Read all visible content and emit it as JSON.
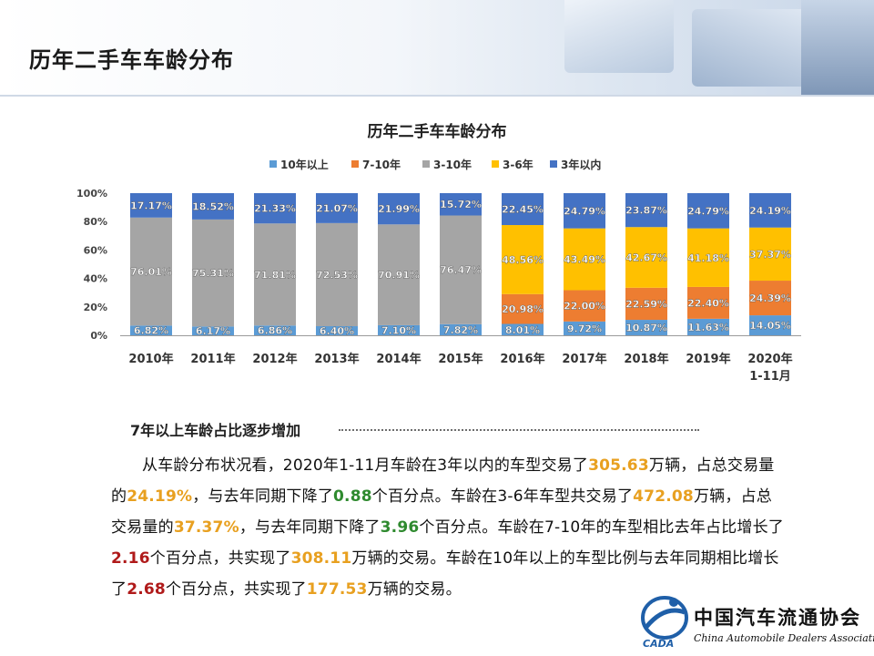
{
  "header": {
    "title": "历年二手车车龄分布"
  },
  "chart_data": {
    "type": "bar",
    "stacked": true,
    "percent": true,
    "title": "历年二手车车龄分布",
    "legend_position": "top",
    "ylim": [
      0,
      100
    ],
    "y_ticks": [
      "0%",
      "20%",
      "40%",
      "60%",
      "80%",
      "100%"
    ],
    "categories": [
      "2010年",
      "2011年",
      "2012年",
      "2013年",
      "2014年",
      "2015年",
      "2016年",
      "2017年",
      "2018年",
      "2019年",
      "2020年\n1-11月"
    ],
    "series": [
      {
        "name": "10年以上",
        "color": "#5b9bd5",
        "values": [
          6.82,
          6.17,
          6.86,
          6.4,
          7.1,
          7.82,
          8.01,
          9.72,
          10.87,
          11.63,
          14.05
        ],
        "labels": [
          "6.82%",
          "6.17%",
          "6.86%",
          "6.40%",
          "7.10%",
          "7.82%",
          "8.01%",
          "9.72%",
          "10.87%",
          "11.63%",
          "14.05%"
        ]
      },
      {
        "name": "7-10年",
        "color": "#ed7d31",
        "values": [
          null,
          null,
          null,
          null,
          null,
          null,
          20.98,
          22.0,
          22.59,
          22.4,
          24.39
        ],
        "labels": [
          "",
          "",
          "",
          "",
          "",
          "",
          "20.98%",
          "22.00%",
          "22.59%",
          "22.40%",
          "24.39%"
        ]
      },
      {
        "name": "3-10年",
        "color": "#a5a5a5",
        "values": [
          76.01,
          75.31,
          71.81,
          72.53,
          70.91,
          76.47,
          null,
          null,
          null,
          null,
          null
        ],
        "labels": [
          "76.01%",
          "75.31%",
          "71.81%",
          "72.53%",
          "70.91%",
          "76.47%",
          "",
          "",
          "",
          "",
          ""
        ]
      },
      {
        "name": "3-6年",
        "color": "#ffc000",
        "values": [
          null,
          null,
          null,
          null,
          null,
          null,
          48.56,
          43.49,
          42.67,
          41.18,
          37.37
        ],
        "labels": [
          "",
          "",
          "",
          "",
          "",
          "",
          "48.56%",
          "43.49%",
          "42.67%",
          "41.18%",
          "37.37%"
        ]
      },
      {
        "name": "3年以内",
        "color": "#4472c4",
        "values": [
          17.17,
          18.52,
          21.33,
          21.07,
          21.99,
          15.72,
          22.45,
          24.79,
          23.87,
          24.79,
          24.19
        ],
        "labels": [
          "17.17%",
          "18.52%",
          "21.33%",
          "21.07%",
          "21.99%",
          "15.72%",
          "22.45%",
          "24.79%",
          "23.87%",
          "24.79%",
          "24.19%"
        ]
      }
    ]
  },
  "section": {
    "heading": "7年以上车龄占比逐步增加"
  },
  "paragraph": {
    "t1": "从车龄分布状况看，2020年1-11月车龄在3年以内的车型交易了",
    "v1": "305.63",
    "t2": "万辆，占总交易量的",
    "v2": "24.19%",
    "t3": "，与去年同期下降了",
    "v3": "0.88",
    "t4": "个百分点。车龄在3-6年车型共交易了",
    "v4": "472.08",
    "t5": "万辆，占总交易量的",
    "v5": "37.37%",
    "t6": "，与去年同期下降了",
    "v6": "3.96",
    "t7": "个百分点。车龄在7-10年的车型相比去年占比增长了",
    "v7": "2.16",
    "t8": "个百分点，共实现了",
    "v8": "308.11",
    "t9": "万辆的交易。车龄在10年以上的车型比例与去年同期相比增长了",
    "v9": "2.68",
    "t10": "个百分点，共实现了",
    "v10": "177.53",
    "t11": "万辆的交易。"
  },
  "logo": {
    "cn": "中国汽车流通协会",
    "en": "China Automobile Dealers Association",
    "abbr": "CADA"
  }
}
